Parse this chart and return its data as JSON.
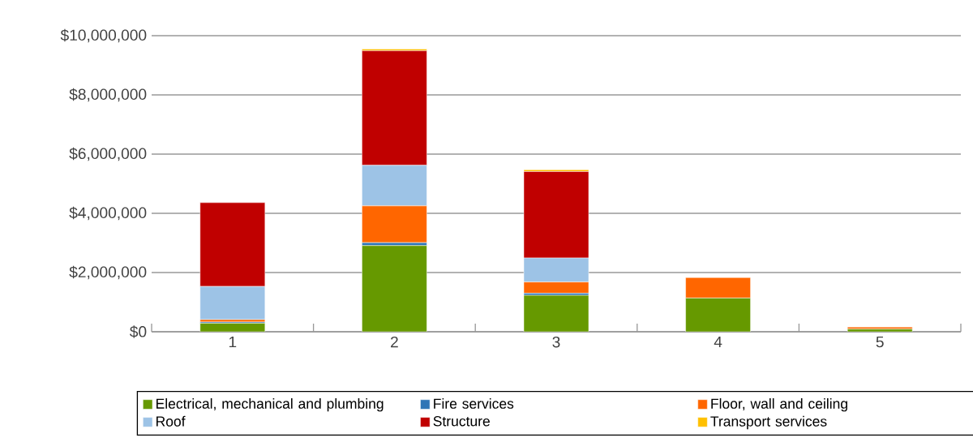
{
  "chart_data": {
    "type": "bar",
    "stacked": true,
    "categories": [
      "1",
      "2",
      "3",
      "4",
      "5"
    ],
    "series": [
      {
        "name": "Electrical, mechanical and plumbing",
        "color": "#669900",
        "values": [
          290000,
          2910000,
          1230000,
          1140000,
          90000
        ]
      },
      {
        "name": "Fire services",
        "color": "#2e75b6",
        "values": [
          40000,
          100000,
          70000,
          0,
          0
        ]
      },
      {
        "name": "Floor, wall and ceiling",
        "color": "#ff6600",
        "values": [
          80000,
          1240000,
          380000,
          690000,
          70000
        ]
      },
      {
        "name": "Roof",
        "color": "#9dc3e6",
        "values": [
          1120000,
          1370000,
          810000,
          0,
          0
        ]
      },
      {
        "name": "Structure",
        "color": "#c00000",
        "values": [
          2830000,
          3870000,
          2920000,
          0,
          0
        ]
      },
      {
        "name": "Transport services",
        "color": "#ffc000",
        "values": [
          0,
          60000,
          60000,
          0,
          0
        ]
      }
    ],
    "ylim": [
      0,
      10000000
    ],
    "yticks": [
      {
        "value": 0,
        "label": "$0"
      },
      {
        "value": 2000000,
        "label": "$2,000,000"
      },
      {
        "value": 4000000,
        "label": "$4,000,000"
      },
      {
        "value": 6000000,
        "label": "$6,000,000"
      },
      {
        "value": 8000000,
        "label": "$8,000,000"
      },
      {
        "value": 10000000,
        "label": "$10,000,000"
      }
    ],
    "grid": "y",
    "legend": "bottom"
  }
}
